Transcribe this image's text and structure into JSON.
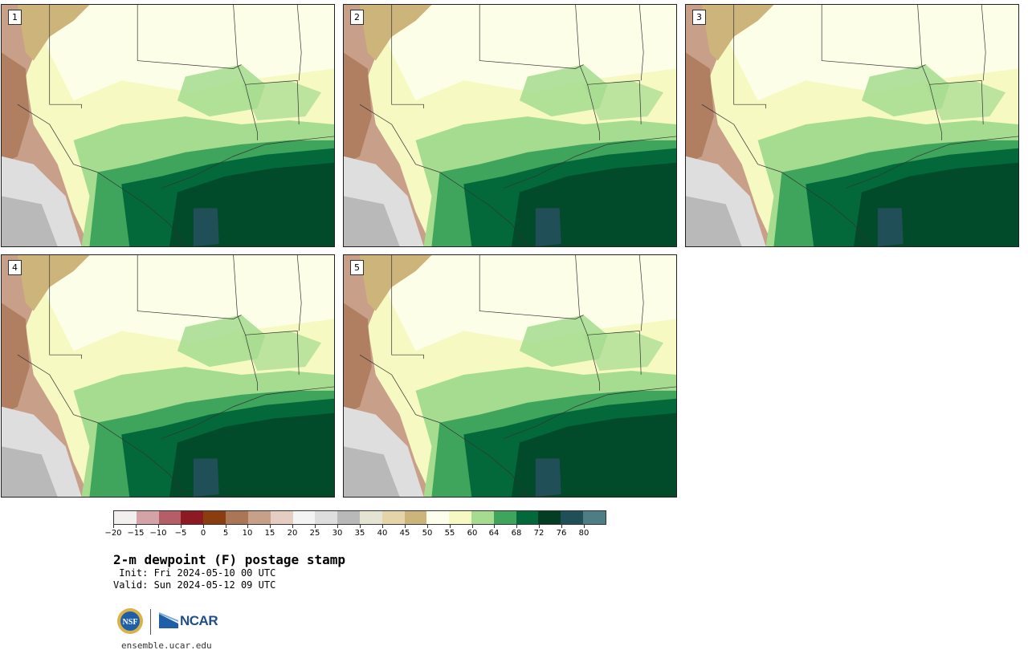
{
  "panels": [
    {
      "label": "1"
    },
    {
      "label": "2"
    },
    {
      "label": "3"
    },
    {
      "label": "4"
    },
    {
      "label": "5"
    }
  ],
  "colorbar": {
    "colors": [
      "#f3efee",
      "#d3a3a8",
      "#b45f68",
      "#8c1924",
      "#8a3e10",
      "#aa7656",
      "#c8a08a",
      "#e6cdc2",
      "#f4f4f4",
      "#dedede",
      "#b9b9b9",
      "#e5e4d2",
      "#e4d4a8",
      "#cdb47a",
      "#fefeec",
      "#f6f9c2",
      "#a5dc8f",
      "#3fa55c",
      "#03693a",
      "#023d24",
      "#204f58",
      "#4e7e84"
    ],
    "tick_labels": [
      "−20",
      "−15",
      "−10",
      "−5",
      "0",
      "5",
      "10",
      "15",
      "20",
      "25",
      "30",
      "35",
      "40",
      "45",
      "50",
      "55",
      "60",
      "64",
      "68",
      "72",
      "76",
      "80"
    ]
  },
  "title": "2-m dewpoint (F) postage stamp",
  "init": " Init: Fri 2024-05-10 00 UTC",
  "valid": "Valid: Sun 2024-05-12 09 UTC",
  "logo": {
    "nsf": "NSF",
    "ncar": "NCAR"
  },
  "url": "ensemble.ucar.edu"
}
